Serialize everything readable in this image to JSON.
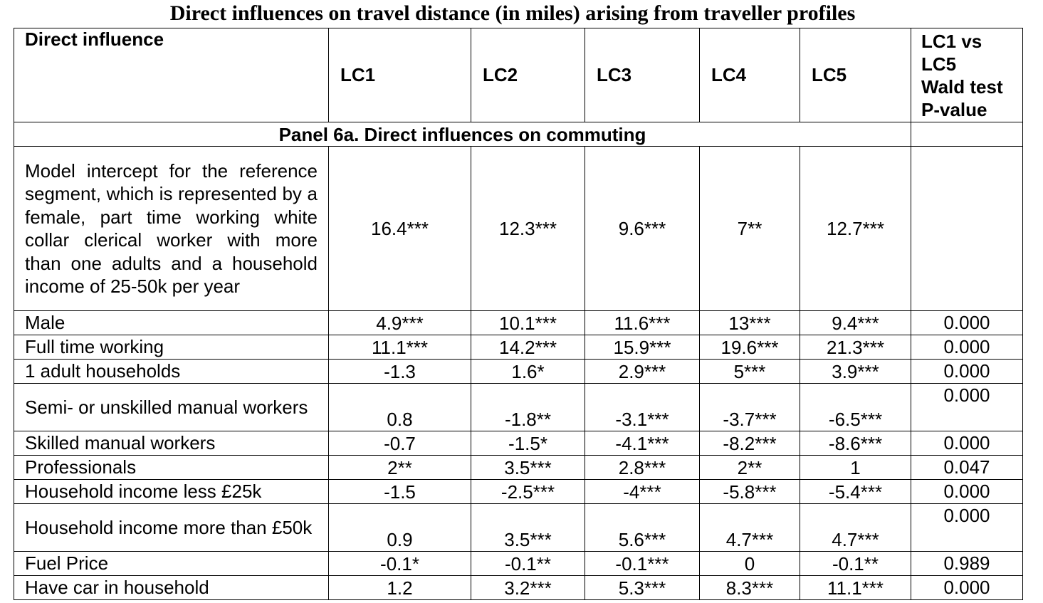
{
  "title": "Direct influences on travel distance (in miles) arising from traveller profiles",
  "columns": [
    "Direct influence",
    "LC1",
    "LC2",
    "LC3",
    "LC4",
    "LC5",
    "LC1 vs LC5 Wald test P-value"
  ],
  "wald_header_lines": [
    "LC1 vs",
    "LC5",
    "Wald test",
    "P-value"
  ],
  "panel_title": "Panel 6a. Direct influences on commuting",
  "rows": [
    {
      "label": "Model intercept for the reference segment, which is represented by a female, part time working white collar clerical worker with more than one adults and a household income of 25-50k per year",
      "lc1": "16.4***",
      "lc2": "12.3***",
      "lc3": "9.6***",
      "lc4": "7**",
      "lc5": "12.7***",
      "wald": ""
    },
    {
      "label": "Male",
      "lc1": "4.9***",
      "lc2": "10.1***",
      "lc3": "11.6***",
      "lc4": "13***",
      "lc5": "9.4***",
      "wald": "0.000"
    },
    {
      "label": "Full time working",
      "lc1": "11.1***",
      "lc2": "14.2***",
      "lc3": "15.9***",
      "lc4": "19.6***",
      "lc5": "21.3***",
      "wald": "0.000"
    },
    {
      "label": "1 adult households",
      "lc1": "-1.3",
      "lc2": "1.6*",
      "lc3": "2.9***",
      "lc4": "5***",
      "lc5": "3.9***",
      "wald": "0.000"
    },
    {
      "label": "Semi- or unskilled manual workers",
      "lc1": "0.8",
      "lc2": "-1.8**",
      "lc3": "-3.1***",
      "lc4": "-3.7***",
      "lc5": "-6.5***",
      "wald": "0.000"
    },
    {
      "label": "Skilled manual workers",
      "lc1": "-0.7",
      "lc2": "-1.5*",
      "lc3": "-4.1***",
      "lc4": "-8.2***",
      "lc5": "-8.6***",
      "wald": "0.000"
    },
    {
      "label": "Professionals",
      "lc1": "2**",
      "lc2": "3.5***",
      "lc3": "2.8***",
      "lc4": "2**",
      "lc5": "1",
      "wald": "0.047"
    },
    {
      "label": "Household income less £25k",
      "lc1": "-1.5",
      "lc2": "-2.5***",
      "lc3": "-4***",
      "lc4": "-5.8***",
      "lc5": "-5.4***",
      "wald": "0.000"
    },
    {
      "label": "Household income more than £50k",
      "lc1": "0.9",
      "lc2": "3.5***",
      "lc3": "5.6***",
      "lc4": "4.7***",
      "lc5": "4.7***",
      "wald": "0.000"
    },
    {
      "label": "Fuel Price",
      "lc1": "-0.1*",
      "lc2": "-0.1**",
      "lc3": "-0.1***",
      "lc4": "0",
      "lc5": "-0.1**",
      "wald": "0.989"
    },
    {
      "label": "Have car in household",
      "lc1": "1.2",
      "lc2": "3.2***",
      "lc3": "5.3***",
      "lc4": "8.3***",
      "lc5": "11.1***",
      "wald": "0.000"
    }
  ]
}
